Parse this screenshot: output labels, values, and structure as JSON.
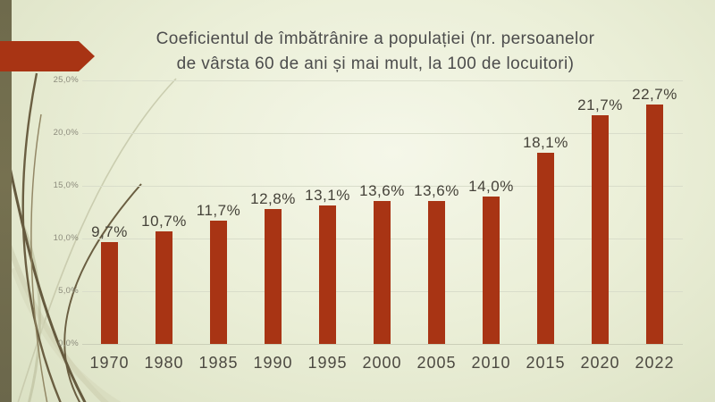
{
  "slide": {
    "title_lines": [
      "Coeficientul de îmbătrânire a populației (nr. persoanelor",
      "de vârsta 60 de ani și mai mult, la 100 de locuitori)"
    ],
    "accent_color": "#A83414",
    "stripe_color": "#767150",
    "background_center": "#F5F7E9",
    "background_edge": "#D9DFC2"
  },
  "chart_data": {
    "type": "bar",
    "title": "Coeficientul de îmbătrânire a populației (nr. persoanelor de vârsta 60 de ani și mai mult, la 100 de locuitori)",
    "categories": [
      "1970",
      "1980",
      "1985",
      "1990",
      "1995",
      "2000",
      "2005",
      "2010",
      "2015",
      "2020",
      "2022"
    ],
    "values": [
      9.7,
      10.7,
      11.7,
      12.8,
      13.1,
      13.6,
      13.6,
      14.0,
      18.1,
      21.7,
      22.7
    ],
    "value_labels": [
      "9,7%",
      "10,7%",
      "11,7%",
      "12,8%",
      "13,1%",
      "13,6%",
      "13,6%",
      "14,0%",
      "18,1%",
      "21,7%",
      "22,7%"
    ],
    "y_tick_values": [
      0,
      5,
      10,
      15,
      20,
      25
    ],
    "y_tick_labels": [
      "0,0%",
      "5,0%",
      "10,0%",
      "15,0%",
      "20,0%",
      "25,0%"
    ],
    "ylim": [
      0,
      25
    ],
    "xlabel": "",
    "ylabel": "",
    "bar_color": "#A83414",
    "grid": true,
    "legend": "none",
    "decoration_colors": {
      "vine_dark": "#6A5E41",
      "vine_medium": "#8A7D5A",
      "vine_pale": "#CBCDAE"
    }
  }
}
